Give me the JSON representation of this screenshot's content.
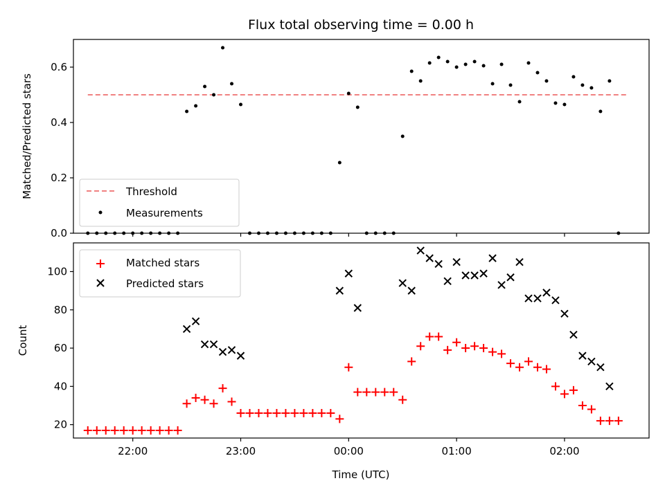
{
  "chart_data": [
    {
      "type": "scatter",
      "title": "Flux total observing time = 0.00 h",
      "xlabel": "",
      "ylabel": "Matched/Predicted stars",
      "xlim": [
        "21:27",
        "02:47"
      ],
      "ylim": [
        0,
        0.7
      ],
      "x_ticks": [
        "22:00",
        "23:00",
        "00:00",
        "01:00",
        "02:00"
      ],
      "y_ticks": [
        "0.0",
        "0.2",
        "0.4",
        "0.6"
      ],
      "legend_position": "lower-left",
      "threshold": {
        "name": "Threshold",
        "value": 0.5,
        "x_range": [
          "21:35",
          "02:35"
        ],
        "color": "#f08080",
        "style": "dashed"
      },
      "series": [
        {
          "name": "Measurements",
          "color": "#000000",
          "marker": "dot",
          "points": [
            {
              "x": "21:35",
              "y": 0.0
            },
            {
              "x": "21:40",
              "y": 0.0
            },
            {
              "x": "21:45",
              "y": 0.0
            },
            {
              "x": "21:50",
              "y": 0.0
            },
            {
              "x": "21:55",
              "y": 0.0
            },
            {
              "x": "22:00",
              "y": 0.0
            },
            {
              "x": "22:05",
              "y": 0.0
            },
            {
              "x": "22:10",
              "y": 0.0
            },
            {
              "x": "22:15",
              "y": 0.0
            },
            {
              "x": "22:20",
              "y": 0.0
            },
            {
              "x": "22:25",
              "y": 0.0
            },
            {
              "x": "22:30",
              "y": 0.44
            },
            {
              "x": "22:35",
              "y": 0.46
            },
            {
              "x": "22:40",
              "y": 0.53
            },
            {
              "x": "22:45",
              "y": 0.5
            },
            {
              "x": "22:50",
              "y": 0.67
            },
            {
              "x": "22:55",
              "y": 0.54
            },
            {
              "x": "23:00",
              "y": 0.465
            },
            {
              "x": "23:05",
              "y": 0.0
            },
            {
              "x": "23:10",
              "y": 0.0
            },
            {
              "x": "23:15",
              "y": 0.0
            },
            {
              "x": "23:20",
              "y": 0.0
            },
            {
              "x": "23:25",
              "y": 0.0
            },
            {
              "x": "23:30",
              "y": 0.0
            },
            {
              "x": "23:35",
              "y": 0.0
            },
            {
              "x": "23:40",
              "y": 0.0
            },
            {
              "x": "23:45",
              "y": 0.0
            },
            {
              "x": "23:50",
              "y": 0.0
            },
            {
              "x": "23:55",
              "y": 0.255
            },
            {
              "x": "00:00",
              "y": 0.505
            },
            {
              "x": "00:05",
              "y": 0.455
            },
            {
              "x": "00:10",
              "y": 0.0
            },
            {
              "x": "00:15",
              "y": 0.0
            },
            {
              "x": "00:20",
              "y": 0.0
            },
            {
              "x": "00:25",
              "y": 0.0
            },
            {
              "x": "00:30",
              "y": 0.35
            },
            {
              "x": "00:35",
              "y": 0.585
            },
            {
              "x": "00:40",
              "y": 0.55
            },
            {
              "x": "00:45",
              "y": 0.615
            },
            {
              "x": "00:50",
              "y": 0.635
            },
            {
              "x": "00:55",
              "y": 0.62
            },
            {
              "x": "01:00",
              "y": 0.6
            },
            {
              "x": "01:05",
              "y": 0.61
            },
            {
              "x": "01:10",
              "y": 0.62
            },
            {
              "x": "01:15",
              "y": 0.605
            },
            {
              "x": "01:20",
              "y": 0.54
            },
            {
              "x": "01:25",
              "y": 0.61
            },
            {
              "x": "01:30",
              "y": 0.535
            },
            {
              "x": "01:35",
              "y": 0.475
            },
            {
              "x": "01:40",
              "y": 0.615
            },
            {
              "x": "01:45",
              "y": 0.58
            },
            {
              "x": "01:50",
              "y": 0.55
            },
            {
              "x": "01:55",
              "y": 0.47
            },
            {
              "x": "02:00",
              "y": 0.465
            },
            {
              "x": "02:05",
              "y": 0.565
            },
            {
              "x": "02:10",
              "y": 0.535
            },
            {
              "x": "02:15",
              "y": 0.525
            },
            {
              "x": "02:20",
              "y": 0.44
            },
            {
              "x": "02:25",
              "y": 0.55
            },
            {
              "x": "02:30",
              "y": 0.0
            }
          ]
        }
      ]
    },
    {
      "type": "scatter",
      "title": "",
      "xlabel": "Time (UTC)",
      "ylabel": "Count",
      "xlim": [
        "21:27",
        "02:47"
      ],
      "ylim": [
        13,
        115
      ],
      "x_ticks": [
        "22:00",
        "23:00",
        "00:00",
        "01:00",
        "02:00"
      ],
      "y_ticks": [
        "20",
        "40",
        "60",
        "80",
        "100"
      ],
      "legend_position": "upper-left",
      "series": [
        {
          "name": "Matched stars",
          "color": "#ff0000",
          "marker": "plus",
          "points": [
            {
              "x": "21:35",
              "y": 17
            },
            {
              "x": "21:40",
              "y": 17
            },
            {
              "x": "21:45",
              "y": 17
            },
            {
              "x": "21:50",
              "y": 17
            },
            {
              "x": "21:55",
              "y": 17
            },
            {
              "x": "22:00",
              "y": 17
            },
            {
              "x": "22:05",
              "y": 17
            },
            {
              "x": "22:10",
              "y": 17
            },
            {
              "x": "22:15",
              "y": 17
            },
            {
              "x": "22:20",
              "y": 17
            },
            {
              "x": "22:25",
              "y": 17
            },
            {
              "x": "22:30",
              "y": 31
            },
            {
              "x": "22:35",
              "y": 34
            },
            {
              "x": "22:40",
              "y": 33
            },
            {
              "x": "22:45",
              "y": 31
            },
            {
              "x": "22:50",
              "y": 39
            },
            {
              "x": "22:55",
              "y": 32
            },
            {
              "x": "23:00",
              "y": 26
            },
            {
              "x": "23:05",
              "y": 26
            },
            {
              "x": "23:10",
              "y": 26
            },
            {
              "x": "23:15",
              "y": 26
            },
            {
              "x": "23:20",
              "y": 26
            },
            {
              "x": "23:25",
              "y": 26
            },
            {
              "x": "23:30",
              "y": 26
            },
            {
              "x": "23:35",
              "y": 26
            },
            {
              "x": "23:40",
              "y": 26
            },
            {
              "x": "23:45",
              "y": 26
            },
            {
              "x": "23:50",
              "y": 26
            },
            {
              "x": "23:55",
              "y": 23
            },
            {
              "x": "00:00",
              "y": 50
            },
            {
              "x": "00:05",
              "y": 37
            },
            {
              "x": "00:10",
              "y": 37
            },
            {
              "x": "00:15",
              "y": 37
            },
            {
              "x": "00:20",
              "y": 37
            },
            {
              "x": "00:25",
              "y": 37
            },
            {
              "x": "00:30",
              "y": 33
            },
            {
              "x": "00:35",
              "y": 53
            },
            {
              "x": "00:40",
              "y": 61
            },
            {
              "x": "00:45",
              "y": 66
            },
            {
              "x": "00:50",
              "y": 66
            },
            {
              "x": "00:55",
              "y": 59
            },
            {
              "x": "01:00",
              "y": 63
            },
            {
              "x": "01:05",
              "y": 60
            },
            {
              "x": "01:10",
              "y": 61
            },
            {
              "x": "01:15",
              "y": 60
            },
            {
              "x": "01:20",
              "y": 58
            },
            {
              "x": "01:25",
              "y": 57
            },
            {
              "x": "01:30",
              "y": 52
            },
            {
              "x": "01:35",
              "y": 50
            },
            {
              "x": "01:40",
              "y": 53
            },
            {
              "x": "01:45",
              "y": 50
            },
            {
              "x": "01:50",
              "y": 49
            },
            {
              "x": "01:55",
              "y": 40
            },
            {
              "x": "02:00",
              "y": 36
            },
            {
              "x": "02:05",
              "y": 38
            },
            {
              "x": "02:10",
              "y": 30
            },
            {
              "x": "02:15",
              "y": 28
            },
            {
              "x": "02:20",
              "y": 22
            },
            {
              "x": "02:25",
              "y": 22
            },
            {
              "x": "02:30",
              "y": 22
            }
          ]
        },
        {
          "name": "Predicted stars",
          "color": "#000000",
          "marker": "x",
          "points": [
            {
              "x": "22:30",
              "y": 70
            },
            {
              "x": "22:35",
              "y": 74
            },
            {
              "x": "22:40",
              "y": 62
            },
            {
              "x": "22:45",
              "y": 62
            },
            {
              "x": "22:50",
              "y": 58
            },
            {
              "x": "22:55",
              "y": 59
            },
            {
              "x": "23:00",
              "y": 56
            },
            {
              "x": "23:55",
              "y": 90
            },
            {
              "x": "00:00",
              "y": 99
            },
            {
              "x": "00:05",
              "y": 81
            },
            {
              "x": "00:30",
              "y": 94
            },
            {
              "x": "00:35",
              "y": 90
            },
            {
              "x": "00:40",
              "y": 111
            },
            {
              "x": "00:45",
              "y": 107
            },
            {
              "x": "00:50",
              "y": 104
            },
            {
              "x": "00:55",
              "y": 95
            },
            {
              "x": "01:00",
              "y": 105
            },
            {
              "x": "01:05",
              "y": 98
            },
            {
              "x": "01:10",
              "y": 98
            },
            {
              "x": "01:15",
              "y": 99
            },
            {
              "x": "01:20",
              "y": 107
            },
            {
              "x": "01:25",
              "y": 93
            },
            {
              "x": "01:30",
              "y": 97
            },
            {
              "x": "01:35",
              "y": 105
            },
            {
              "x": "01:40",
              "y": 86
            },
            {
              "x": "01:45",
              "y": 86
            },
            {
              "x": "01:50",
              "y": 89
            },
            {
              "x": "01:55",
              "y": 85
            },
            {
              "x": "02:00",
              "y": 78
            },
            {
              "x": "02:05",
              "y": 67
            },
            {
              "x": "02:10",
              "y": 56
            },
            {
              "x": "02:15",
              "y": 53
            },
            {
              "x": "02:20",
              "y": 50
            },
            {
              "x": "02:25",
              "y": 40
            }
          ]
        }
      ]
    }
  ]
}
